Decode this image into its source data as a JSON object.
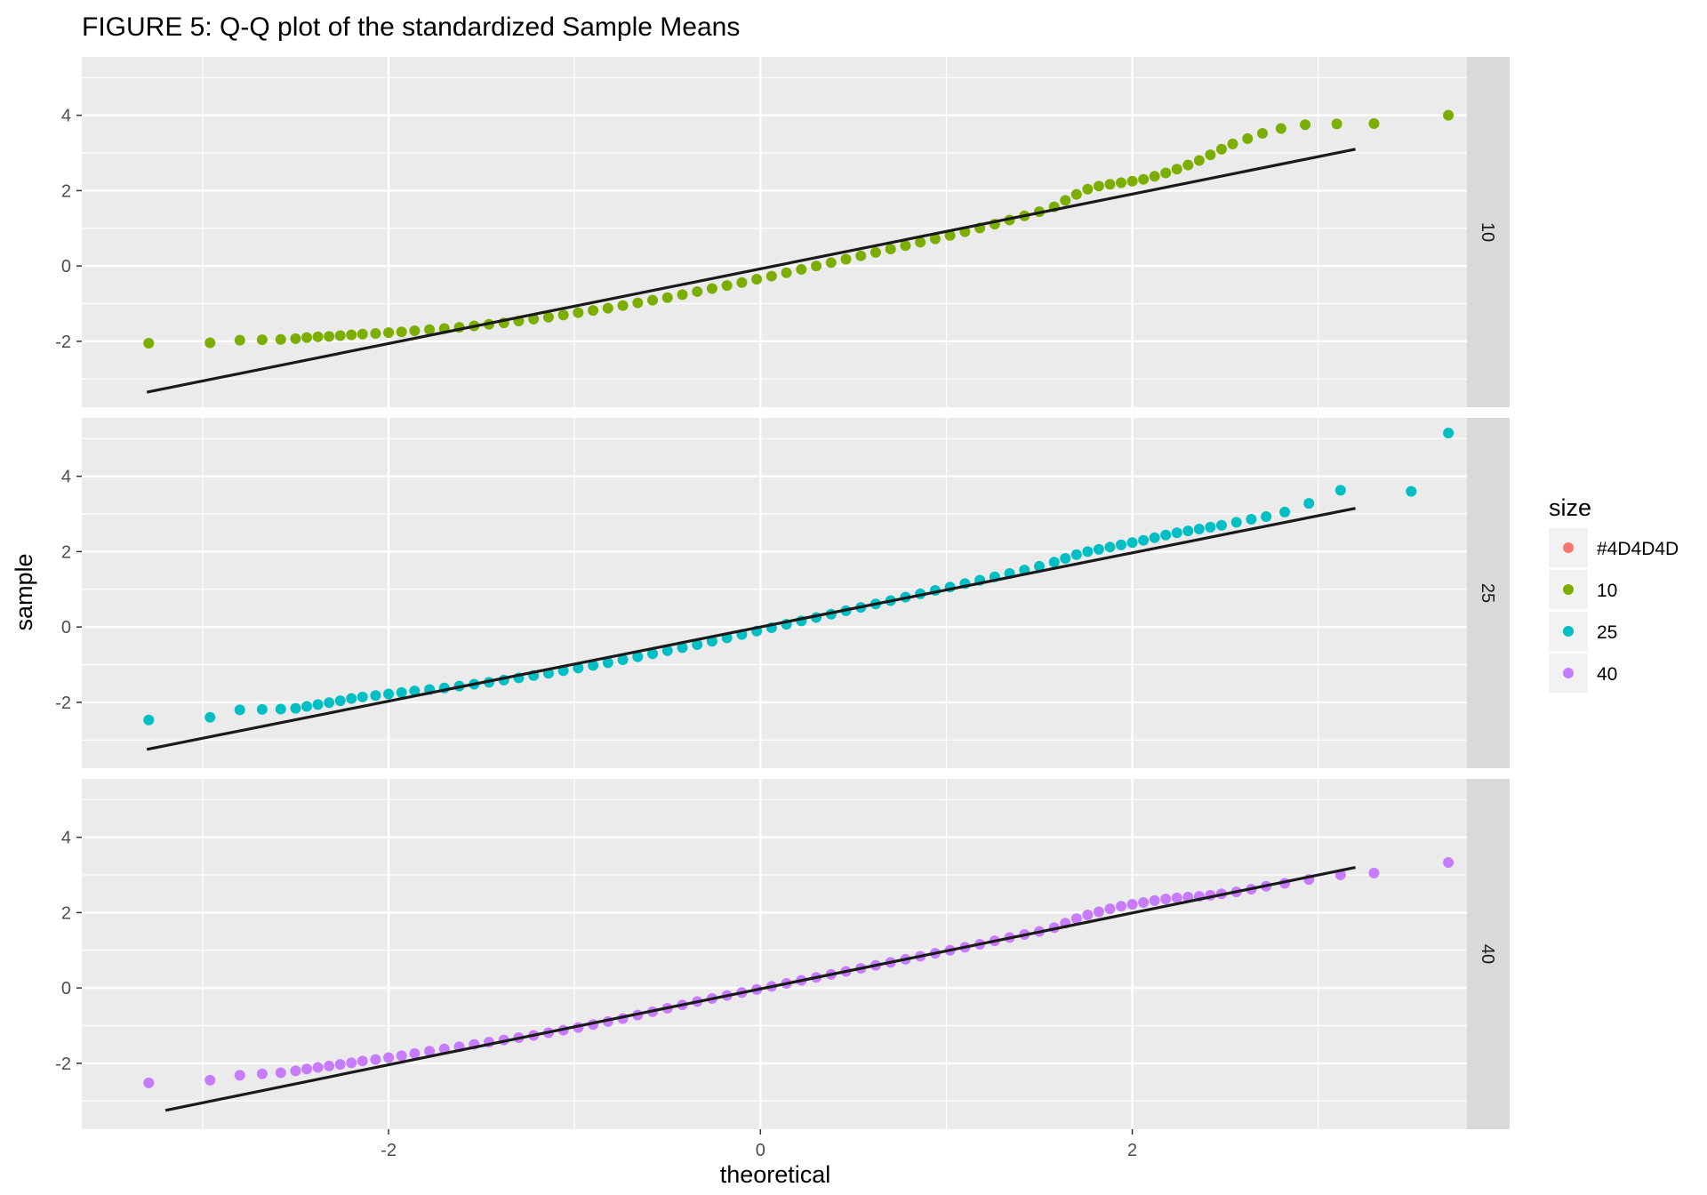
{
  "chart_data": {
    "type": "scatter",
    "title": "FIGURE 5: Q-Q plot of the standardized Sample Means",
    "xlabel": "theoretical",
    "ylabel": "sample",
    "xlim": [
      -3.65,
      3.8
    ],
    "ylim": [
      -3.75,
      5.55
    ],
    "x_ticks": [
      -2,
      0,
      2
    ],
    "y_ticks": [
      -2,
      0,
      2,
      4
    ],
    "grid": true,
    "legend": {
      "title": "size",
      "placement": "right",
      "entries": [
        {
          "label": "#4D4D4D",
          "color": "#F8766D"
        },
        {
          "label": "10",
          "color": "#7CAE00"
        },
        {
          "label": "25",
          "color": "#00BFC4"
        },
        {
          "label": "40",
          "color": "#C77CFF"
        }
      ]
    },
    "panels": [
      {
        "strip": "10",
        "color": "#7CAE00",
        "reference_line": {
          "x": [
            -3.3,
            3.2
          ],
          "y": [
            -3.35,
            3.1
          ]
        },
        "points": [
          [
            -3.29,
            -2.05
          ],
          [
            -2.96,
            -2.04
          ],
          [
            -2.8,
            -1.97
          ],
          [
            -2.68,
            -1.96
          ],
          [
            -2.58,
            -1.95
          ],
          [
            -2.5,
            -1.93
          ],
          [
            -2.44,
            -1.9
          ],
          [
            -2.38,
            -1.88
          ],
          [
            -2.32,
            -1.87
          ],
          [
            -2.26,
            -1.85
          ],
          [
            -2.2,
            -1.83
          ],
          [
            -2.14,
            -1.81
          ],
          [
            -2.07,
            -1.79
          ],
          [
            -2.0,
            -1.77
          ],
          [
            -1.93,
            -1.75
          ],
          [
            -1.86,
            -1.72
          ],
          [
            -1.78,
            -1.69
          ],
          [
            -1.7,
            -1.66
          ],
          [
            -1.62,
            -1.63
          ],
          [
            -1.54,
            -1.59
          ],
          [
            -1.46,
            -1.55
          ],
          [
            -1.38,
            -1.51
          ],
          [
            -1.3,
            -1.46
          ],
          [
            -1.22,
            -1.41
          ],
          [
            -1.14,
            -1.36
          ],
          [
            -1.06,
            -1.3
          ],
          [
            -0.98,
            -1.24
          ],
          [
            -0.9,
            -1.18
          ],
          [
            -0.82,
            -1.12
          ],
          [
            -0.74,
            -1.05
          ],
          [
            -0.66,
            -0.98
          ],
          [
            -0.58,
            -0.91
          ],
          [
            -0.5,
            -0.84
          ],
          [
            -0.42,
            -0.76
          ],
          [
            -0.34,
            -0.68
          ],
          [
            -0.26,
            -0.6
          ],
          [
            -0.18,
            -0.52
          ],
          [
            -0.1,
            -0.44
          ],
          [
            -0.02,
            -0.35
          ],
          [
            0.06,
            -0.27
          ],
          [
            0.14,
            -0.18
          ],
          [
            0.22,
            -0.09
          ],
          [
            0.3,
            0.0
          ],
          [
            0.38,
            0.09
          ],
          [
            0.46,
            0.18
          ],
          [
            0.54,
            0.27
          ],
          [
            0.62,
            0.36
          ],
          [
            0.7,
            0.45
          ],
          [
            0.78,
            0.54
          ],
          [
            0.86,
            0.63
          ],
          [
            0.94,
            0.72
          ],
          [
            1.02,
            0.81
          ],
          [
            1.1,
            0.91
          ],
          [
            1.18,
            1.01
          ],
          [
            1.26,
            1.11
          ],
          [
            1.34,
            1.22
          ],
          [
            1.42,
            1.33
          ],
          [
            1.5,
            1.44
          ],
          [
            1.58,
            1.57
          ],
          [
            1.64,
            1.74
          ],
          [
            1.7,
            1.9
          ],
          [
            1.76,
            2.04
          ],
          [
            1.82,
            2.12
          ],
          [
            1.88,
            2.17
          ],
          [
            1.94,
            2.21
          ],
          [
            2.0,
            2.25
          ],
          [
            2.06,
            2.3
          ],
          [
            2.12,
            2.38
          ],
          [
            2.18,
            2.47
          ],
          [
            2.24,
            2.57
          ],
          [
            2.3,
            2.68
          ],
          [
            2.36,
            2.8
          ],
          [
            2.42,
            2.95
          ],
          [
            2.48,
            3.1
          ],
          [
            2.54,
            3.24
          ],
          [
            2.62,
            3.38
          ],
          [
            2.7,
            3.52
          ],
          [
            2.8,
            3.65
          ],
          [
            2.93,
            3.75
          ],
          [
            3.1,
            3.77
          ],
          [
            3.3,
            3.78
          ],
          [
            3.7,
            4.0
          ]
        ]
      },
      {
        "strip": "25",
        "color": "#00BFC4",
        "reference_line": {
          "x": [
            -3.3,
            3.2
          ],
          "y": [
            -3.25,
            3.15
          ]
        },
        "points": [
          [
            -3.29,
            -2.47
          ],
          [
            -2.96,
            -2.4
          ],
          [
            -2.8,
            -2.2
          ],
          [
            -2.68,
            -2.19
          ],
          [
            -2.58,
            -2.18
          ],
          [
            -2.5,
            -2.16
          ],
          [
            -2.44,
            -2.11
          ],
          [
            -2.38,
            -2.06
          ],
          [
            -2.32,
            -2.01
          ],
          [
            -2.26,
            -1.96
          ],
          [
            -2.2,
            -1.9
          ],
          [
            -2.14,
            -1.86
          ],
          [
            -2.07,
            -1.82
          ],
          [
            -2.0,
            -1.78
          ],
          [
            -1.93,
            -1.74
          ],
          [
            -1.86,
            -1.7
          ],
          [
            -1.78,
            -1.66
          ],
          [
            -1.7,
            -1.62
          ],
          [
            -1.62,
            -1.57
          ],
          [
            -1.54,
            -1.52
          ],
          [
            -1.46,
            -1.47
          ],
          [
            -1.38,
            -1.41
          ],
          [
            -1.3,
            -1.35
          ],
          [
            -1.22,
            -1.29
          ],
          [
            -1.14,
            -1.23
          ],
          [
            -1.06,
            -1.16
          ],
          [
            -0.98,
            -1.09
          ],
          [
            -0.9,
            -1.02
          ],
          [
            -0.82,
            -0.95
          ],
          [
            -0.74,
            -0.87
          ],
          [
            -0.66,
            -0.79
          ],
          [
            -0.58,
            -0.71
          ],
          [
            -0.5,
            -0.63
          ],
          [
            -0.42,
            -0.55
          ],
          [
            -0.34,
            -0.47
          ],
          [
            -0.26,
            -0.38
          ],
          [
            -0.18,
            -0.29
          ],
          [
            -0.1,
            -0.2
          ],
          [
            -0.02,
            -0.11
          ],
          [
            0.06,
            -0.02
          ],
          [
            0.14,
            0.07
          ],
          [
            0.22,
            0.16
          ],
          [
            0.3,
            0.25
          ],
          [
            0.38,
            0.34
          ],
          [
            0.46,
            0.43
          ],
          [
            0.54,
            0.52
          ],
          [
            0.62,
            0.61
          ],
          [
            0.7,
            0.7
          ],
          [
            0.78,
            0.79
          ],
          [
            0.86,
            0.88
          ],
          [
            0.94,
            0.97
          ],
          [
            1.02,
            1.06
          ],
          [
            1.1,
            1.15
          ],
          [
            1.18,
            1.24
          ],
          [
            1.26,
            1.33
          ],
          [
            1.34,
            1.42
          ],
          [
            1.42,
            1.51
          ],
          [
            1.5,
            1.61
          ],
          [
            1.58,
            1.72
          ],
          [
            1.64,
            1.82
          ],
          [
            1.7,
            1.92
          ],
          [
            1.76,
            2.0
          ],
          [
            1.82,
            2.06
          ],
          [
            1.88,
            2.12
          ],
          [
            1.94,
            2.18
          ],
          [
            2.0,
            2.24
          ],
          [
            2.06,
            2.3
          ],
          [
            2.12,
            2.37
          ],
          [
            2.18,
            2.44
          ],
          [
            2.24,
            2.5
          ],
          [
            2.3,
            2.55
          ],
          [
            2.36,
            2.6
          ],
          [
            2.42,
            2.65
          ],
          [
            2.48,
            2.7
          ],
          [
            2.56,
            2.78
          ],
          [
            2.64,
            2.86
          ],
          [
            2.72,
            2.93
          ],
          [
            2.82,
            3.05
          ],
          [
            2.95,
            3.28
          ],
          [
            3.12,
            3.63
          ],
          [
            3.5,
            3.6
          ],
          [
            3.7,
            5.15
          ]
        ]
      },
      {
        "strip": "40",
        "color": "#C77CFF",
        "reference_line": {
          "x": [
            -3.2,
            3.2
          ],
          "y": [
            -3.25,
            3.2
          ]
        },
        "points": [
          [
            -3.29,
            -2.52
          ],
          [
            -2.96,
            -2.45
          ],
          [
            -2.8,
            -2.32
          ],
          [
            -2.68,
            -2.28
          ],
          [
            -2.58,
            -2.25
          ],
          [
            -2.5,
            -2.2
          ],
          [
            -2.44,
            -2.15
          ],
          [
            -2.38,
            -2.11
          ],
          [
            -2.32,
            -2.07
          ],
          [
            -2.26,
            -2.03
          ],
          [
            -2.2,
            -1.99
          ],
          [
            -2.14,
            -1.94
          ],
          [
            -2.07,
            -1.9
          ],
          [
            -2.0,
            -1.85
          ],
          [
            -1.93,
            -1.8
          ],
          [
            -1.86,
            -1.74
          ],
          [
            -1.78,
            -1.68
          ],
          [
            -1.7,
            -1.62
          ],
          [
            -1.62,
            -1.56
          ],
          [
            -1.54,
            -1.5
          ],
          [
            -1.46,
            -1.44
          ],
          [
            -1.38,
            -1.38
          ],
          [
            -1.3,
            -1.32
          ],
          [
            -1.22,
            -1.26
          ],
          [
            -1.14,
            -1.19
          ],
          [
            -1.06,
            -1.12
          ],
          [
            -0.98,
            -1.05
          ],
          [
            -0.9,
            -0.97
          ],
          [
            -0.82,
            -0.89
          ],
          [
            -0.74,
            -0.81
          ],
          [
            -0.66,
            -0.72
          ],
          [
            -0.58,
            -0.63
          ],
          [
            -0.5,
            -0.54
          ],
          [
            -0.42,
            -0.45
          ],
          [
            -0.34,
            -0.36
          ],
          [
            -0.26,
            -0.28
          ],
          [
            -0.18,
            -0.2
          ],
          [
            -0.1,
            -0.12
          ],
          [
            -0.02,
            -0.04
          ],
          [
            0.06,
            0.04
          ],
          [
            0.14,
            0.12
          ],
          [
            0.22,
            0.2
          ],
          [
            0.3,
            0.28
          ],
          [
            0.38,
            0.36
          ],
          [
            0.46,
            0.44
          ],
          [
            0.54,
            0.52
          ],
          [
            0.62,
            0.6
          ],
          [
            0.7,
            0.68
          ],
          [
            0.78,
            0.76
          ],
          [
            0.86,
            0.84
          ],
          [
            0.94,
            0.92
          ],
          [
            1.02,
            1.0
          ],
          [
            1.1,
            1.08
          ],
          [
            1.18,
            1.16
          ],
          [
            1.26,
            1.25
          ],
          [
            1.34,
            1.34
          ],
          [
            1.42,
            1.42
          ],
          [
            1.5,
            1.5
          ],
          [
            1.58,
            1.6
          ],
          [
            1.64,
            1.72
          ],
          [
            1.7,
            1.84
          ],
          [
            1.76,
            1.94
          ],
          [
            1.82,
            2.02
          ],
          [
            1.88,
            2.1
          ],
          [
            1.94,
            2.17
          ],
          [
            2.0,
            2.22
          ],
          [
            2.06,
            2.27
          ],
          [
            2.12,
            2.32
          ],
          [
            2.18,
            2.36
          ],
          [
            2.24,
            2.39
          ],
          [
            2.3,
            2.41
          ],
          [
            2.36,
            2.43
          ],
          [
            2.42,
            2.46
          ],
          [
            2.48,
            2.5
          ],
          [
            2.56,
            2.55
          ],
          [
            2.64,
            2.62
          ],
          [
            2.72,
            2.7
          ],
          [
            2.82,
            2.78
          ],
          [
            2.95,
            2.88
          ],
          [
            3.12,
            3.0
          ],
          [
            3.3,
            3.05
          ],
          [
            3.7,
            3.33
          ]
        ]
      }
    ]
  }
}
